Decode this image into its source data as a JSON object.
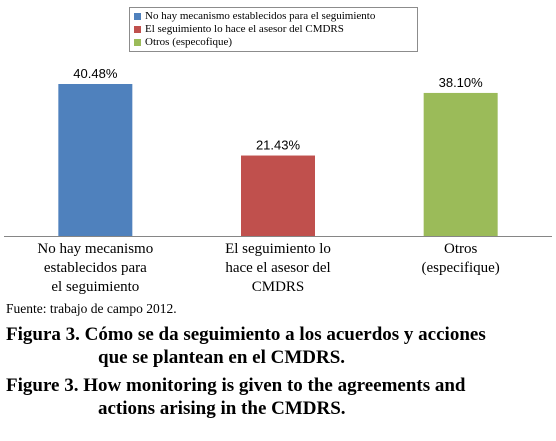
{
  "chart_data": {
    "type": "bar",
    "categories": [
      "No hay mecanismo establecidos para el seguimiento",
      "El seguimiento lo hace el asesor del CMDRS",
      "Otros (especifique)"
    ],
    "category_label_lines": [
      [
        "No hay mecanismo",
        "establecidos para",
        "el seguimiento"
      ],
      [
        "El seguimiento lo",
        "hace el asesor del",
        "CMDRS"
      ],
      [
        "Otros",
        "(especifique)"
      ]
    ],
    "values": [
      40.48,
      21.43,
      38.1
    ],
    "value_labels": [
      "40.48%",
      "21.43%",
      "38.10%"
    ],
    "colors": [
      "#4f81bd",
      "#c0504d",
      "#9bbb59"
    ],
    "legend": [
      {
        "label": "No hay mecanismo establecidos para el seguimiento",
        "color": "#4f81bd"
      },
      {
        "label": "El seguimiento lo hace el asesor del CMDRS",
        "color": "#c0504d"
      },
      {
        "label": "Otros (especofique)",
        "color": "#9bbb59"
      }
    ],
    "legend_position": "top-center",
    "ylim": [
      0,
      50
    ],
    "grid": false,
    "axes_visible": false
  },
  "source": "Fuente: trabajo de campo 2012.",
  "caption_es": {
    "line1": "Figura 3. Cómo se da seguimiento a los acuerdos y acciones",
    "line2": "que se plantean en el CMDRS."
  },
  "caption_en": {
    "line1": "Figure 3. How monitoring is given to the agreements and",
    "line2": "actions arising in the CMDRS."
  }
}
